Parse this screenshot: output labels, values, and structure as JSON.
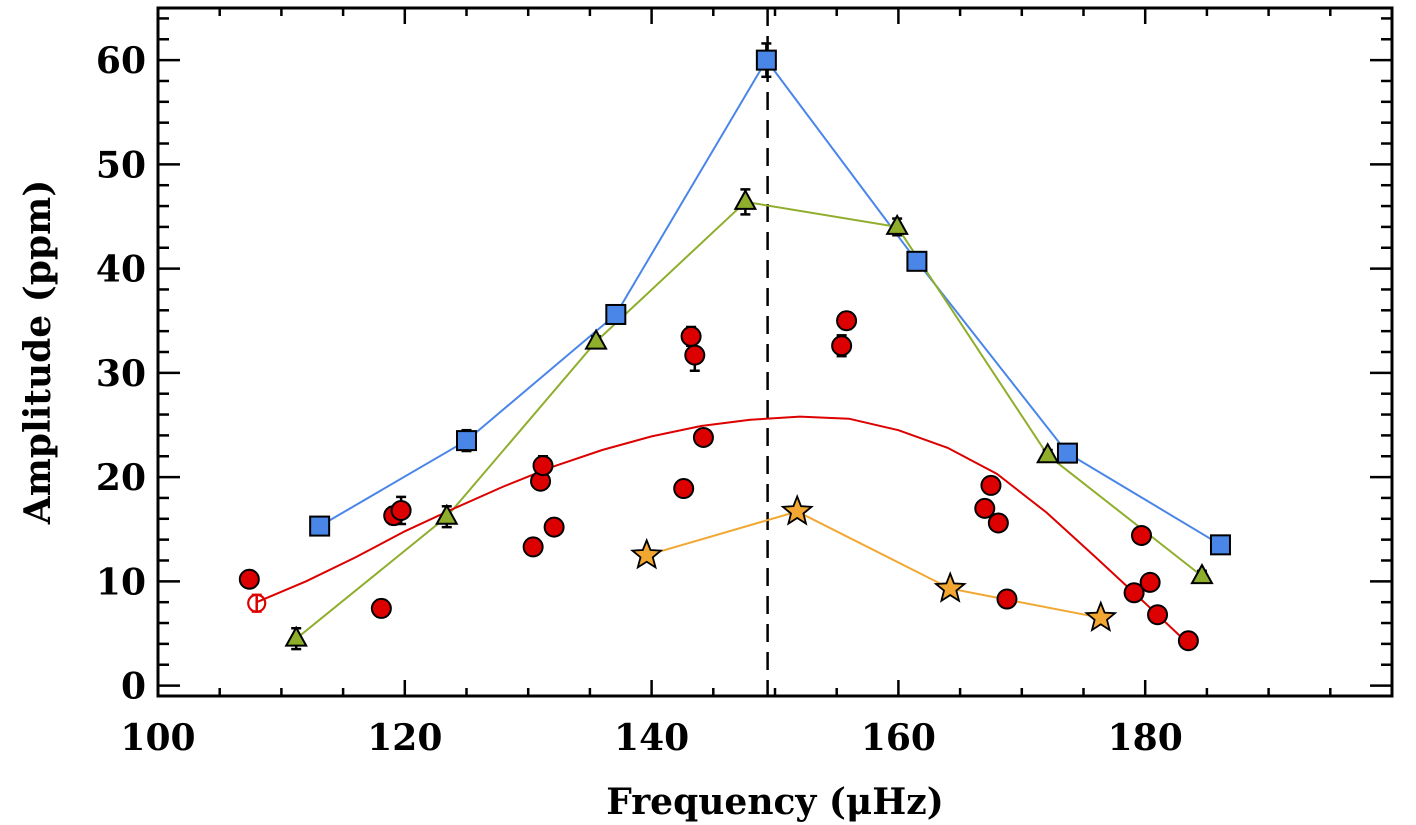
{
  "chart_data": {
    "type": "scatter",
    "xlabel": "Frequency (μHz)",
    "ylabel": "Amplitude (ppm)",
    "xlim": [
      100,
      200
    ],
    "ylim": [
      -1,
      65
    ],
    "x_ticks": [
      100,
      120,
      140,
      160,
      180
    ],
    "y_ticks": [
      0,
      10,
      20,
      30,
      40,
      50,
      60
    ],
    "vertical_reference_line": {
      "x": 149.4,
      "style": "dashed"
    },
    "series": [
      {
        "name": "blue squares",
        "marker": "square",
        "color": "#4a86e8",
        "connected": true,
        "points": [
          {
            "x": 113.1,
            "y": 15.3,
            "err": 0.5
          },
          {
            "x": 125.0,
            "y": 23.5,
            "err": 1.0
          },
          {
            "x": 137.1,
            "y": 35.6,
            "err": 0.5
          },
          {
            "x": 149.3,
            "y": 60.0,
            "err": 1.6
          },
          {
            "x": 161.5,
            "y": 40.7,
            "err": 0.6
          },
          {
            "x": 173.7,
            "y": 22.3,
            "err": 0.5
          },
          {
            "x": 186.1,
            "y": 13.5,
            "err": 0.5
          }
        ]
      },
      {
        "name": "green triangles",
        "marker": "triangle",
        "color": "#8fae2c",
        "connected": true,
        "points": [
          {
            "x": 111.2,
            "y": 4.5,
            "err": 1.0
          },
          {
            "x": 123.4,
            "y": 16.2,
            "err": 1.0
          },
          {
            "x": 135.5,
            "y": 33.0,
            "err": 0.5
          },
          {
            "x": 147.6,
            "y": 46.4,
            "err": 1.2
          },
          {
            "x": 159.9,
            "y": 44.0,
            "err": 0.8
          },
          {
            "x": 172.1,
            "y": 22.1,
            "err": 0.5
          },
          {
            "x": 184.6,
            "y": 10.5,
            "err": 0.5
          }
        ]
      },
      {
        "name": "orange stars",
        "marker": "star",
        "color": "#f1a731",
        "connected": true,
        "points": [
          {
            "x": 139.6,
            "y": 12.5
          },
          {
            "x": 151.8,
            "y": 16.7
          },
          {
            "x": 164.2,
            "y": 9.3
          },
          {
            "x": 176.4,
            "y": 6.5
          }
        ]
      },
      {
        "name": "red filled circles",
        "marker": "circle",
        "color": "#dd0000",
        "connected": false,
        "points": [
          {
            "x": 107.4,
            "y": 10.2,
            "err": 0.5
          },
          {
            "x": 118.1,
            "y": 7.4,
            "err": 0.8
          },
          {
            "x": 119.1,
            "y": 16.3,
            "err": 0.8
          },
          {
            "x": 119.7,
            "y": 16.8,
            "err": 1.3
          },
          {
            "x": 130.4,
            "y": 13.3,
            "err": 0.5
          },
          {
            "x": 131.0,
            "y": 19.6,
            "err": 0.5
          },
          {
            "x": 131.2,
            "y": 21.1,
            "err": 0.9
          },
          {
            "x": 132.1,
            "y": 15.2,
            "err": 0.5
          },
          {
            "x": 142.6,
            "y": 18.9,
            "err": 0.5
          },
          {
            "x": 143.2,
            "y": 33.5,
            "err": 0.9
          },
          {
            "x": 143.5,
            "y": 31.7,
            "err": 1.5
          },
          {
            "x": 144.2,
            "y": 23.8,
            "err": 0.7
          },
          {
            "x": 155.4,
            "y": 32.6,
            "err": 1.0
          },
          {
            "x": 155.8,
            "y": 35.0,
            "err": 0.8
          },
          {
            "x": 167.0,
            "y": 17.0,
            "err": 0.5
          },
          {
            "x": 167.5,
            "y": 19.2,
            "err": 0.5
          },
          {
            "x": 168.1,
            "y": 15.6,
            "err": 0.5
          },
          {
            "x": 168.8,
            "y": 8.3,
            "err": 0.5
          },
          {
            "x": 179.1,
            "y": 8.9,
            "err": 0.5
          },
          {
            "x": 179.7,
            "y": 14.4,
            "err": 0.5
          },
          {
            "x": 180.4,
            "y": 9.9,
            "err": 0.5
          },
          {
            "x": 181.0,
            "y": 6.8,
            "err": 0.5
          },
          {
            "x": 183.5,
            "y": 4.3,
            "err": 0.5
          }
        ]
      },
      {
        "name": "red open circle",
        "marker": "open-circle",
        "color": "#dd0000",
        "connected": false,
        "points": [
          {
            "x": 108.0,
            "y": 7.9,
            "err": 0.8
          }
        ]
      },
      {
        "name": "red fit curve",
        "marker": "none",
        "color": "#dd0000",
        "connected": true,
        "type": "line",
        "points": [
          {
            "x": 108,
            "y": 8.0
          },
          {
            "x": 112,
            "y": 10.0
          },
          {
            "x": 116,
            "y": 12.3
          },
          {
            "x": 120,
            "y": 14.8
          },
          {
            "x": 124,
            "y": 17.0
          },
          {
            "x": 128,
            "y": 19.1
          },
          {
            "x": 132,
            "y": 21.0
          },
          {
            "x": 136,
            "y": 22.6
          },
          {
            "x": 140,
            "y": 23.9
          },
          {
            "x": 144,
            "y": 24.9
          },
          {
            "x": 148,
            "y": 25.5
          },
          {
            "x": 152,
            "y": 25.8
          },
          {
            "x": 156,
            "y": 25.6
          },
          {
            "x": 160,
            "y": 24.5
          },
          {
            "x": 164,
            "y": 22.8
          },
          {
            "x": 168,
            "y": 20.3
          },
          {
            "x": 172,
            "y": 16.6
          },
          {
            "x": 176,
            "y": 12.3
          },
          {
            "x": 180,
            "y": 7.9
          },
          {
            "x": 183.5,
            "y": 4.0
          }
        ]
      }
    ]
  }
}
